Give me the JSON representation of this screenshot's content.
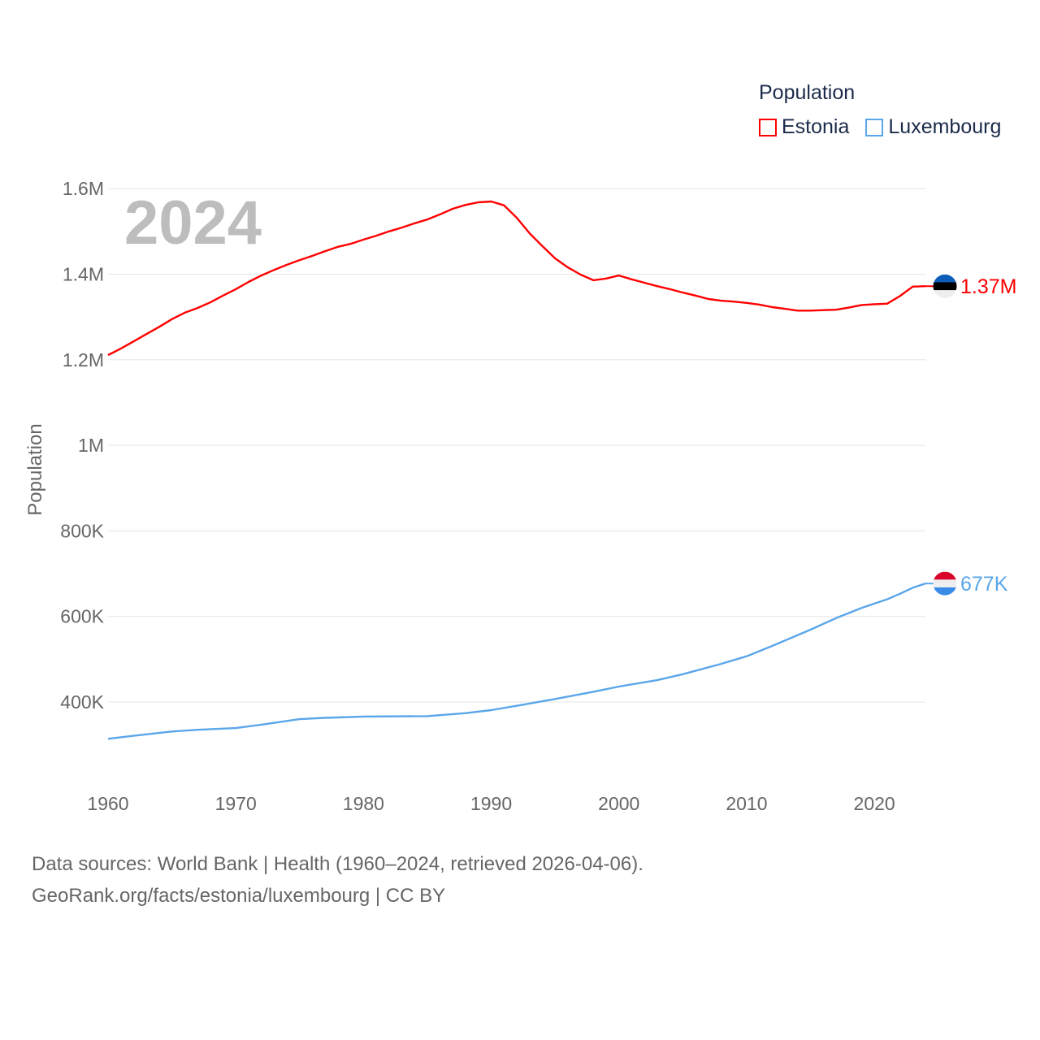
{
  "chart_data": {
    "type": "line",
    "year_label": "2024",
    "ylabel": "Population",
    "xlabel": "",
    "ylim": [
      250000,
      1600000
    ],
    "xlim": [
      1960,
      2024
    ],
    "grid": true,
    "legend_placement": "top-right",
    "legend_title": "Population",
    "x_ticks": [
      "1960",
      "1970",
      "1980",
      "1990",
      "2000",
      "2010",
      "2020"
    ],
    "y_ticks": [
      {
        "value": 400000,
        "label": "400K"
      },
      {
        "value": 600000,
        "label": "600K"
      },
      {
        "value": 800000,
        "label": "800K"
      },
      {
        "value": 1000000,
        "label": "1M"
      },
      {
        "value": 1200000,
        "label": "1.2M"
      },
      {
        "value": 1400000,
        "label": "1.4M"
      },
      {
        "value": 1600000,
        "label": "1.6M"
      }
    ],
    "series": [
      {
        "name": "Estonia",
        "color": "#ff0000",
        "end_label": "1.37M",
        "flag": "estonia-flag",
        "x": [
          1960,
          1961,
          1962,
          1963,
          1964,
          1965,
          1966,
          1967,
          1968,
          1969,
          1970,
          1971,
          1972,
          1973,
          1974,
          1975,
          1976,
          1977,
          1978,
          1979,
          1980,
          1981,
          1982,
          1983,
          1984,
          1985,
          1986,
          1987,
          1988,
          1989,
          1990,
          1991,
          1992,
          1993,
          1994,
          1995,
          1996,
          1997,
          1998,
          1999,
          2000,
          2001,
          2002,
          2003,
          2004,
          2005,
          2006,
          2007,
          2008,
          2009,
          2010,
          2011,
          2012,
          2013,
          2014,
          2015,
          2016,
          2017,
          2018,
          2019,
          2020,
          2021,
          2022,
          2023,
          2024
        ],
        "values": [
          1211000,
          1226000,
          1243000,
          1260000,
          1277000,
          1295000,
          1310000,
          1321000,
          1334000,
          1350000,
          1365000,
          1382000,
          1397000,
          1410000,
          1422000,
          1433000,
          1443000,
          1454000,
          1464000,
          1471000,
          1481000,
          1490000,
          1500000,
          1509000,
          1519000,
          1528000,
          1540000,
          1553000,
          1562000,
          1568000,
          1570000,
          1561000,
          1532000,
          1496000,
          1466000,
          1437000,
          1416000,
          1399000,
          1386000,
          1390000,
          1397000,
          1388000,
          1380000,
          1372000,
          1365000,
          1357000,
          1350000,
          1342000,
          1338000,
          1336000,
          1333000,
          1329000,
          1323000,
          1319000,
          1315000,
          1315000,
          1316000,
          1317000,
          1322000,
          1328000,
          1330000,
          1331000,
          1349000,
          1371000,
          1372000
        ]
      },
      {
        "name": "Luxembourg",
        "color": "#5aa6ea",
        "end_label": "677K",
        "flag": "luxembourg-flag",
        "x": [
          1960,
          1962,
          1965,
          1967,
          1970,
          1972,
          1975,
          1977,
          1980,
          1985,
          1988,
          1990,
          1992,
          1995,
          1998,
          2000,
          2003,
          2005,
          2008,
          2010,
          2012,
          2015,
          2017,
          2019,
          2020,
          2021,
          2022,
          2023,
          2024
        ],
        "values": [
          314000,
          321000,
          331000,
          335000,
          339000,
          347000,
          360000,
          363000,
          366000,
          367000,
          374000,
          381000,
          391000,
          407000,
          424000,
          436000,
          451000,
          465000,
          489000,
          507000,
          531000,
          569000,
          596000,
          620000,
          630000,
          640000,
          653000,
          667000,
          677000
        ]
      }
    ]
  },
  "footer": {
    "line1": "Data sources: World Bank | Health (1960–2024, retrieved 2026-04-06).",
    "line2": "GeoRank.org/facts/estonia/luxembourg | CC BY"
  }
}
